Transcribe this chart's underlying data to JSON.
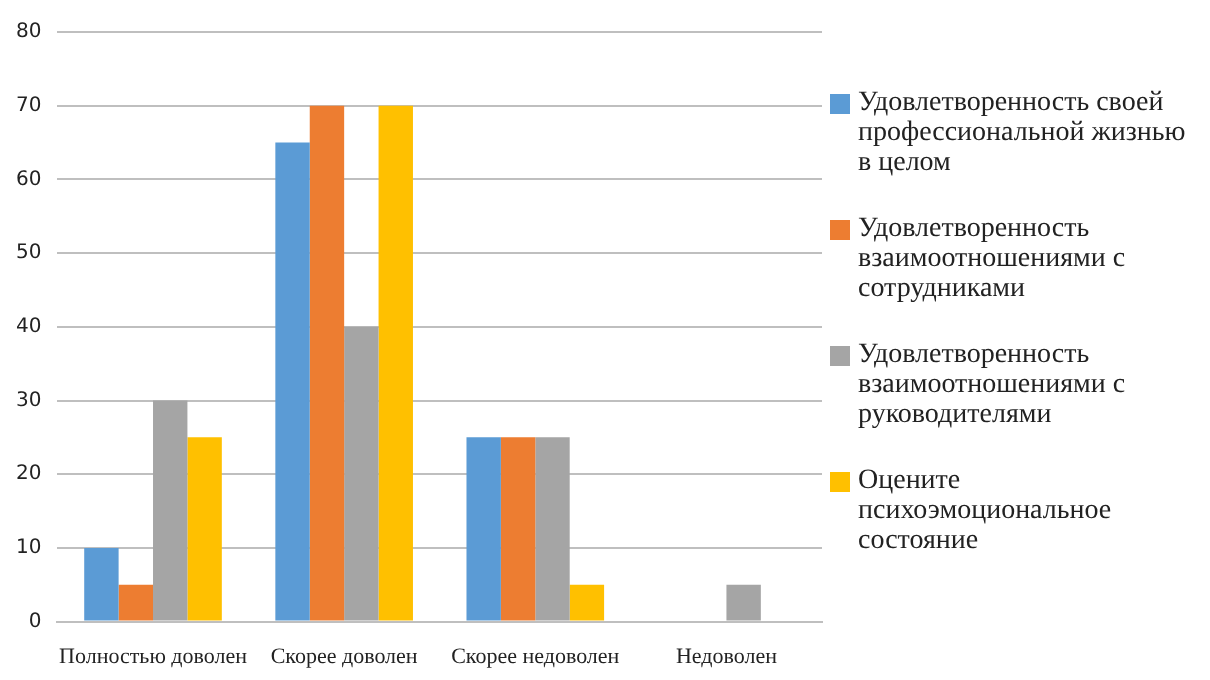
{
  "chart_data": {
    "type": "bar",
    "categories": [
      "Полностью доволен",
      "Скорее доволен",
      "Скорее недоволен",
      "Недоволен"
    ],
    "series": [
      {
        "name": "Удовлетворенность своей профессиональной жизнью в целом",
        "color": "#5b9bd5",
        "values": [
          10,
          65,
          25,
          0
        ]
      },
      {
        "name": "Удовлетворенность взаимоотношениями с сотрудниками",
        "color": "#ed7d31",
        "values": [
          5,
          70,
          25,
          0
        ]
      },
      {
        "name": "Удовлетворенность взаимоотношениями с руководителями",
        "color": "#a5a5a5",
        "values": [
          30,
          40,
          25,
          5
        ]
      },
      {
        "name": "Оцените психоэмоциональное состояние",
        "color": "#ffc000",
        "values": [
          25,
          70,
          5,
          0
        ]
      }
    ],
    "ylim": [
      0,
      80
    ],
    "yticks": [
      0,
      10,
      20,
      30,
      40,
      50,
      60,
      70,
      80
    ],
    "grid": "y",
    "legend": "right"
  }
}
